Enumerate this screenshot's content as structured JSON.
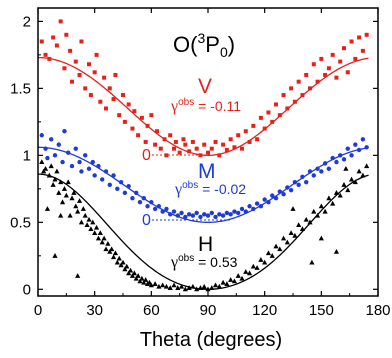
{
  "chart_data": {
    "type": "scatter",
    "title": {
      "main": "O(",
      "sup": "3",
      "mid": "P",
      "sub": "0",
      "end": ")"
    },
    "xlabel": "Theta (degrees)",
    "ylabel": "",
    "xlim": [
      0,
      180
    ],
    "ylim": [
      -0.05,
      2.1
    ],
    "xticks": [
      "0",
      "30",
      "60",
      "90",
      "120",
      "150",
      "180"
    ],
    "yticks": [
      "0",
      "0.5",
      "1",
      "1.5",
      "2"
    ],
    "grid": false,
    "series": [
      {
        "name": "V",
        "color": "#e8201c",
        "marker": "square",
        "gamma_symbol": "γ",
        "gamma_sup": "obs",
        "gamma_value": " = -0.11",
        "zero_label": "0",
        "zero_level": 1.0,
        "fit": {
          "offset": 1.0,
          "a": 0.73,
          "b": -0.06
        },
        "points": [
          [
            2,
            1.85
          ],
          [
            4,
            1.75
          ],
          [
            6,
            1.72
          ],
          [
            8,
            1.88
          ],
          [
            10,
            1.82
          ],
          [
            12,
            2.0
          ],
          [
            14,
            1.65
          ],
          [
            15,
            1.9
          ],
          [
            17,
            1.78
          ],
          [
            18,
            1.55
          ],
          [
            20,
            1.7
          ],
          [
            22,
            1.6
          ],
          [
            23,
            1.85
          ],
          [
            25,
            1.5
          ],
          [
            27,
            1.68
          ],
          [
            28,
            1.45
          ],
          [
            30,
            1.62
          ],
          [
            31,
            1.75
          ],
          [
            33,
            1.4
          ],
          [
            35,
            1.58
          ],
          [
            36,
            1.35
          ],
          [
            38,
            1.5
          ],
          [
            40,
            1.42
          ],
          [
            41,
            1.6
          ],
          [
            43,
            1.3
          ],
          [
            45,
            1.45
          ],
          [
            46,
            1.25
          ],
          [
            48,
            1.38
          ],
          [
            50,
            1.2
          ],
          [
            51,
            1.33
          ],
          [
            53,
            1.15
          ],
          [
            55,
            1.28
          ],
          [
            57,
            1.1
          ],
          [
            58,
            1.22
          ],
          [
            60,
            1.3
          ],
          [
            62,
            1.08
          ],
          [
            63,
            1.18
          ],
          [
            65,
            1.05
          ],
          [
            67,
            1.12
          ],
          [
            68,
            1.0
          ],
          [
            70,
            1.15
          ],
          [
            72,
            1.05
          ],
          [
            73,
            1.1
          ],
          [
            75,
            1.02
          ],
          [
            77,
            1.12
          ],
          [
            78,
            1.08
          ],
          [
            80,
            1.03
          ],
          [
            82,
            1.1
          ],
          [
            84,
            1.05
          ],
          [
            86,
            1.0
          ],
          [
            88,
            1.08
          ],
          [
            90,
            1.02
          ],
          [
            92,
            1.05
          ],
          [
            94,
            1.1
          ],
          [
            96,
            1.0
          ],
          [
            98,
            1.08
          ],
          [
            100,
            1.04
          ],
          [
            102,
            1.12
          ],
          [
            104,
            1.06
          ],
          [
            106,
            1.15
          ],
          [
            108,
            1.05
          ],
          [
            110,
            1.18
          ],
          [
            112,
            1.1
          ],
          [
            114,
            1.22
          ],
          [
            116,
            1.12
          ],
          [
            118,
            1.28
          ],
          [
            120,
            1.2
          ],
          [
            122,
            1.32
          ],
          [
            124,
            1.25
          ],
          [
            126,
            1.38
          ],
          [
            128,
            1.3
          ],
          [
            130,
            1.45
          ],
          [
            132,
            1.35
          ],
          [
            134,
            1.5
          ],
          [
            136,
            1.4
          ],
          [
            138,
            1.55
          ],
          [
            140,
            1.45
          ],
          [
            142,
            1.6
          ],
          [
            144,
            1.5
          ],
          [
            146,
            1.68
          ],
          [
            148,
            1.55
          ],
          [
            150,
            1.72
          ],
          [
            152,
            1.6
          ],
          [
            154,
            1.65
          ],
          [
            156,
            1.75
          ],
          [
            158,
            1.58
          ],
          [
            160,
            1.7
          ],
          [
            162,
            1.8
          ],
          [
            164,
            1.62
          ],
          [
            166,
            1.85
          ],
          [
            168,
            1.72
          ],
          [
            170,
            1.88
          ],
          [
            172,
            1.78
          ],
          [
            174,
            1.9
          ]
        ]
      },
      {
        "name": "M",
        "color": "#1f3ad6",
        "marker": "circle",
        "gamma_symbol": "γ",
        "gamma_sup": "obs",
        "gamma_value": " = -0.02",
        "zero_label": "0",
        "zero_level": 0.5,
        "fit": {
          "offset": 0.5,
          "a": 0.56,
          "b": -0.015
        },
        "points": [
          [
            2,
            1.15
          ],
          [
            4,
            1.05
          ],
          [
            5,
            0.98
          ],
          [
            7,
            1.12
          ],
          [
            9,
            1.0
          ],
          [
            11,
            1.08
          ],
          [
            13,
            0.95
          ],
          [
            14,
            1.18
          ],
          [
            16,
            1.02
          ],
          [
            18,
            0.92
          ],
          [
            20,
            1.05
          ],
          [
            22,
            0.95
          ],
          [
            23,
            0.88
          ],
          [
            25,
            1.0
          ],
          [
            27,
            0.9
          ],
          [
            29,
            0.95
          ],
          [
            30,
            0.85
          ],
          [
            32,
            0.92
          ],
          [
            34,
            0.82
          ],
          [
            36,
            0.88
          ],
          [
            38,
            0.78
          ],
          [
            40,
            0.85
          ],
          [
            42,
            0.75
          ],
          [
            44,
            0.8
          ],
          [
            46,
            0.72
          ],
          [
            48,
            0.77
          ],
          [
            50,
            0.68
          ],
          [
            52,
            0.72
          ],
          [
            54,
            0.65
          ],
          [
            56,
            0.68
          ],
          [
            58,
            0.62
          ],
          [
            60,
            0.65
          ],
          [
            62,
            0.6
          ],
          [
            64,
            0.62
          ],
          [
            66,
            0.58
          ],
          [
            68,
            0.6
          ],
          [
            70,
            0.56
          ],
          [
            72,
            0.58
          ],
          [
            74,
            0.55
          ],
          [
            76,
            0.57
          ],
          [
            78,
            0.54
          ],
          [
            80,
            0.56
          ],
          [
            82,
            0.55
          ],
          [
            84,
            0.57
          ],
          [
            86,
            0.54
          ],
          [
            88,
            0.56
          ],
          [
            90,
            0.55
          ],
          [
            92,
            0.57
          ],
          [
            94,
            0.54
          ],
          [
            96,
            0.56
          ],
          [
            98,
            0.55
          ],
          [
            100,
            0.57
          ],
          [
            102,
            0.56
          ],
          [
            104,
            0.58
          ],
          [
            106,
            0.57
          ],
          [
            108,
            0.6
          ],
          [
            110,
            0.58
          ],
          [
            112,
            0.62
          ],
          [
            114,
            0.6
          ],
          [
            116,
            0.64
          ],
          [
            118,
            0.62
          ],
          [
            120,
            0.67
          ],
          [
            122,
            0.65
          ],
          [
            124,
            0.7
          ],
          [
            126,
            0.68
          ],
          [
            128,
            0.73
          ],
          [
            130,
            0.71
          ],
          [
            132,
            0.76
          ],
          [
            134,
            0.74
          ],
          [
            136,
            0.8
          ],
          [
            138,
            0.78
          ],
          [
            140,
            0.84
          ],
          [
            142,
            0.8
          ],
          [
            144,
            0.88
          ],
          [
            146,
            0.85
          ],
          [
            148,
            0.9
          ],
          [
            150,
            0.88
          ],
          [
            152,
            0.94
          ],
          [
            154,
            0.9
          ],
          [
            156,
            0.98
          ],
          [
            158,
            0.95
          ],
          [
            160,
            1.0
          ],
          [
            162,
            0.97
          ],
          [
            164,
            1.05
          ],
          [
            166,
            1.0
          ],
          [
            168,
            1.08
          ],
          [
            170,
            1.04
          ],
          [
            172,
            1.12
          ],
          [
            174,
            1.06
          ]
        ]
      },
      {
        "name": "H",
        "color": "#000000",
        "marker": "triangle",
        "gamma_symbol": "γ",
        "gamma_sup": "obs",
        "gamma_value": " = 0.53",
        "zero_label": "",
        "zero_level": 0.0,
        "fit": {
          "offset": 0.0,
          "a": 0.86,
          "b": 0.31
        },
        "points": [
          [
            2,
            0.95
          ],
          [
            3,
            0.88
          ],
          [
            4,
            0.9
          ],
          [
            5,
            0.6
          ],
          [
            6,
            0.85
          ],
          [
            7,
            0.92
          ],
          [
            8,
            0.78
          ],
          [
            9,
            0.82
          ],
          [
            10,
            0.88
          ],
          [
            11,
            0.72
          ],
          [
            12,
            0.8
          ],
          [
            13,
            0.65
          ],
          [
            14,
            0.75
          ],
          [
            15,
            0.7
          ],
          [
            16,
            0.8
          ],
          [
            17,
            0.55
          ],
          [
            18,
            0.68
          ],
          [
            19,
            0.72
          ],
          [
            20,
            0.62
          ],
          [
            21,
            0.58
          ],
          [
            22,
            0.66
          ],
          [
            23,
            0.5
          ],
          [
            24,
            0.6
          ],
          [
            25,
            0.55
          ],
          [
            26,
            0.48
          ],
          [
            27,
            0.52
          ],
          [
            28,
            0.45
          ],
          [
            29,
            0.5
          ],
          [
            30,
            0.42
          ],
          [
            31,
            0.46
          ],
          [
            32,
            0.38
          ],
          [
            33,
            0.42
          ],
          [
            34,
            0.35
          ],
          [
            35,
            0.38
          ],
          [
            36,
            0.3
          ],
          [
            37,
            0.34
          ],
          [
            38,
            0.28
          ],
          [
            39,
            0.3
          ],
          [
            40,
            0.24
          ],
          [
            41,
            0.27
          ],
          [
            42,
            0.2
          ],
          [
            43,
            0.23
          ],
          [
            44,
            0.18
          ],
          [
            45,
            0.2
          ],
          [
            46,
            0.15
          ],
          [
            47,
            0.17
          ],
          [
            48,
            0.12
          ],
          [
            49,
            0.14
          ],
          [
            50,
            0.1
          ],
          [
            51,
            0.12
          ],
          [
            52,
            0.08
          ],
          [
            53,
            0.1
          ],
          [
            54,
            0.06
          ],
          [
            55,
            0.08
          ],
          [
            56,
            0.05
          ],
          [
            57,
            0.07
          ],
          [
            58,
            0.04
          ],
          [
            59,
            0.05
          ],
          [
            60,
            0.03
          ],
          [
            62,
            0.04
          ],
          [
            64,
            0.02
          ],
          [
            66,
            0.03
          ],
          [
            68,
            0.02
          ],
          [
            70,
            0.01
          ],
          [
            72,
            0.03
          ],
          [
            74,
            0.01
          ],
          [
            76,
            0.02
          ],
          [
            78,
            0.0
          ],
          [
            80,
            0.01
          ],
          [
            82,
            0.02
          ],
          [
            84,
            0.0
          ],
          [
            86,
            0.01
          ],
          [
            88,
            0.02
          ],
          [
            90,
            0.0
          ],
          [
            92,
            0.01
          ],
          [
            94,
            0.03
          ],
          [
            96,
            0.02
          ],
          [
            98,
            0.05
          ],
          [
            100,
            0.04
          ],
          [
            102,
            0.07
          ],
          [
            104,
            0.06
          ],
          [
            106,
            0.1
          ],
          [
            108,
            0.08
          ],
          [
            110,
            0.13
          ],
          [
            112,
            0.12
          ],
          [
            114,
            0.17
          ],
          [
            116,
            0.16
          ],
          [
            118,
            0.22
          ],
          [
            120,
            0.2
          ],
          [
            122,
            0.27
          ],
          [
            124,
            0.25
          ],
          [
            126,
            0.32
          ],
          [
            128,
            0.3
          ],
          [
            130,
            0.38
          ],
          [
            132,
            0.35
          ],
          [
            134,
            0.42
          ],
          [
            136,
            0.4
          ],
          [
            138,
            0.48
          ],
          [
            140,
            0.45
          ],
          [
            142,
            0.52
          ],
          [
            144,
            0.5
          ],
          [
            146,
            0.58
          ],
          [
            148,
            0.55
          ],
          [
            150,
            0.62
          ],
          [
            152,
            0.58
          ],
          [
            154,
            0.68
          ],
          [
            156,
            0.64
          ],
          [
            158,
            0.72
          ],
          [
            160,
            0.7
          ],
          [
            162,
            0.78
          ],
          [
            164,
            0.74
          ],
          [
            166,
            0.82
          ],
          [
            168,
            0.8
          ],
          [
            170,
            0.88
          ],
          [
            172,
            0.85
          ],
          [
            174,
            0.92
          ],
          [
            135,
            0.6
          ],
          [
            145,
            0.2
          ],
          [
            150,
            0.38
          ],
          [
            158,
            0.28
          ],
          [
            163,
            0.9
          ],
          [
            12,
            0.55
          ],
          [
            9,
            0.25
          ],
          [
            21,
            0.1
          ]
        ]
      }
    ]
  }
}
